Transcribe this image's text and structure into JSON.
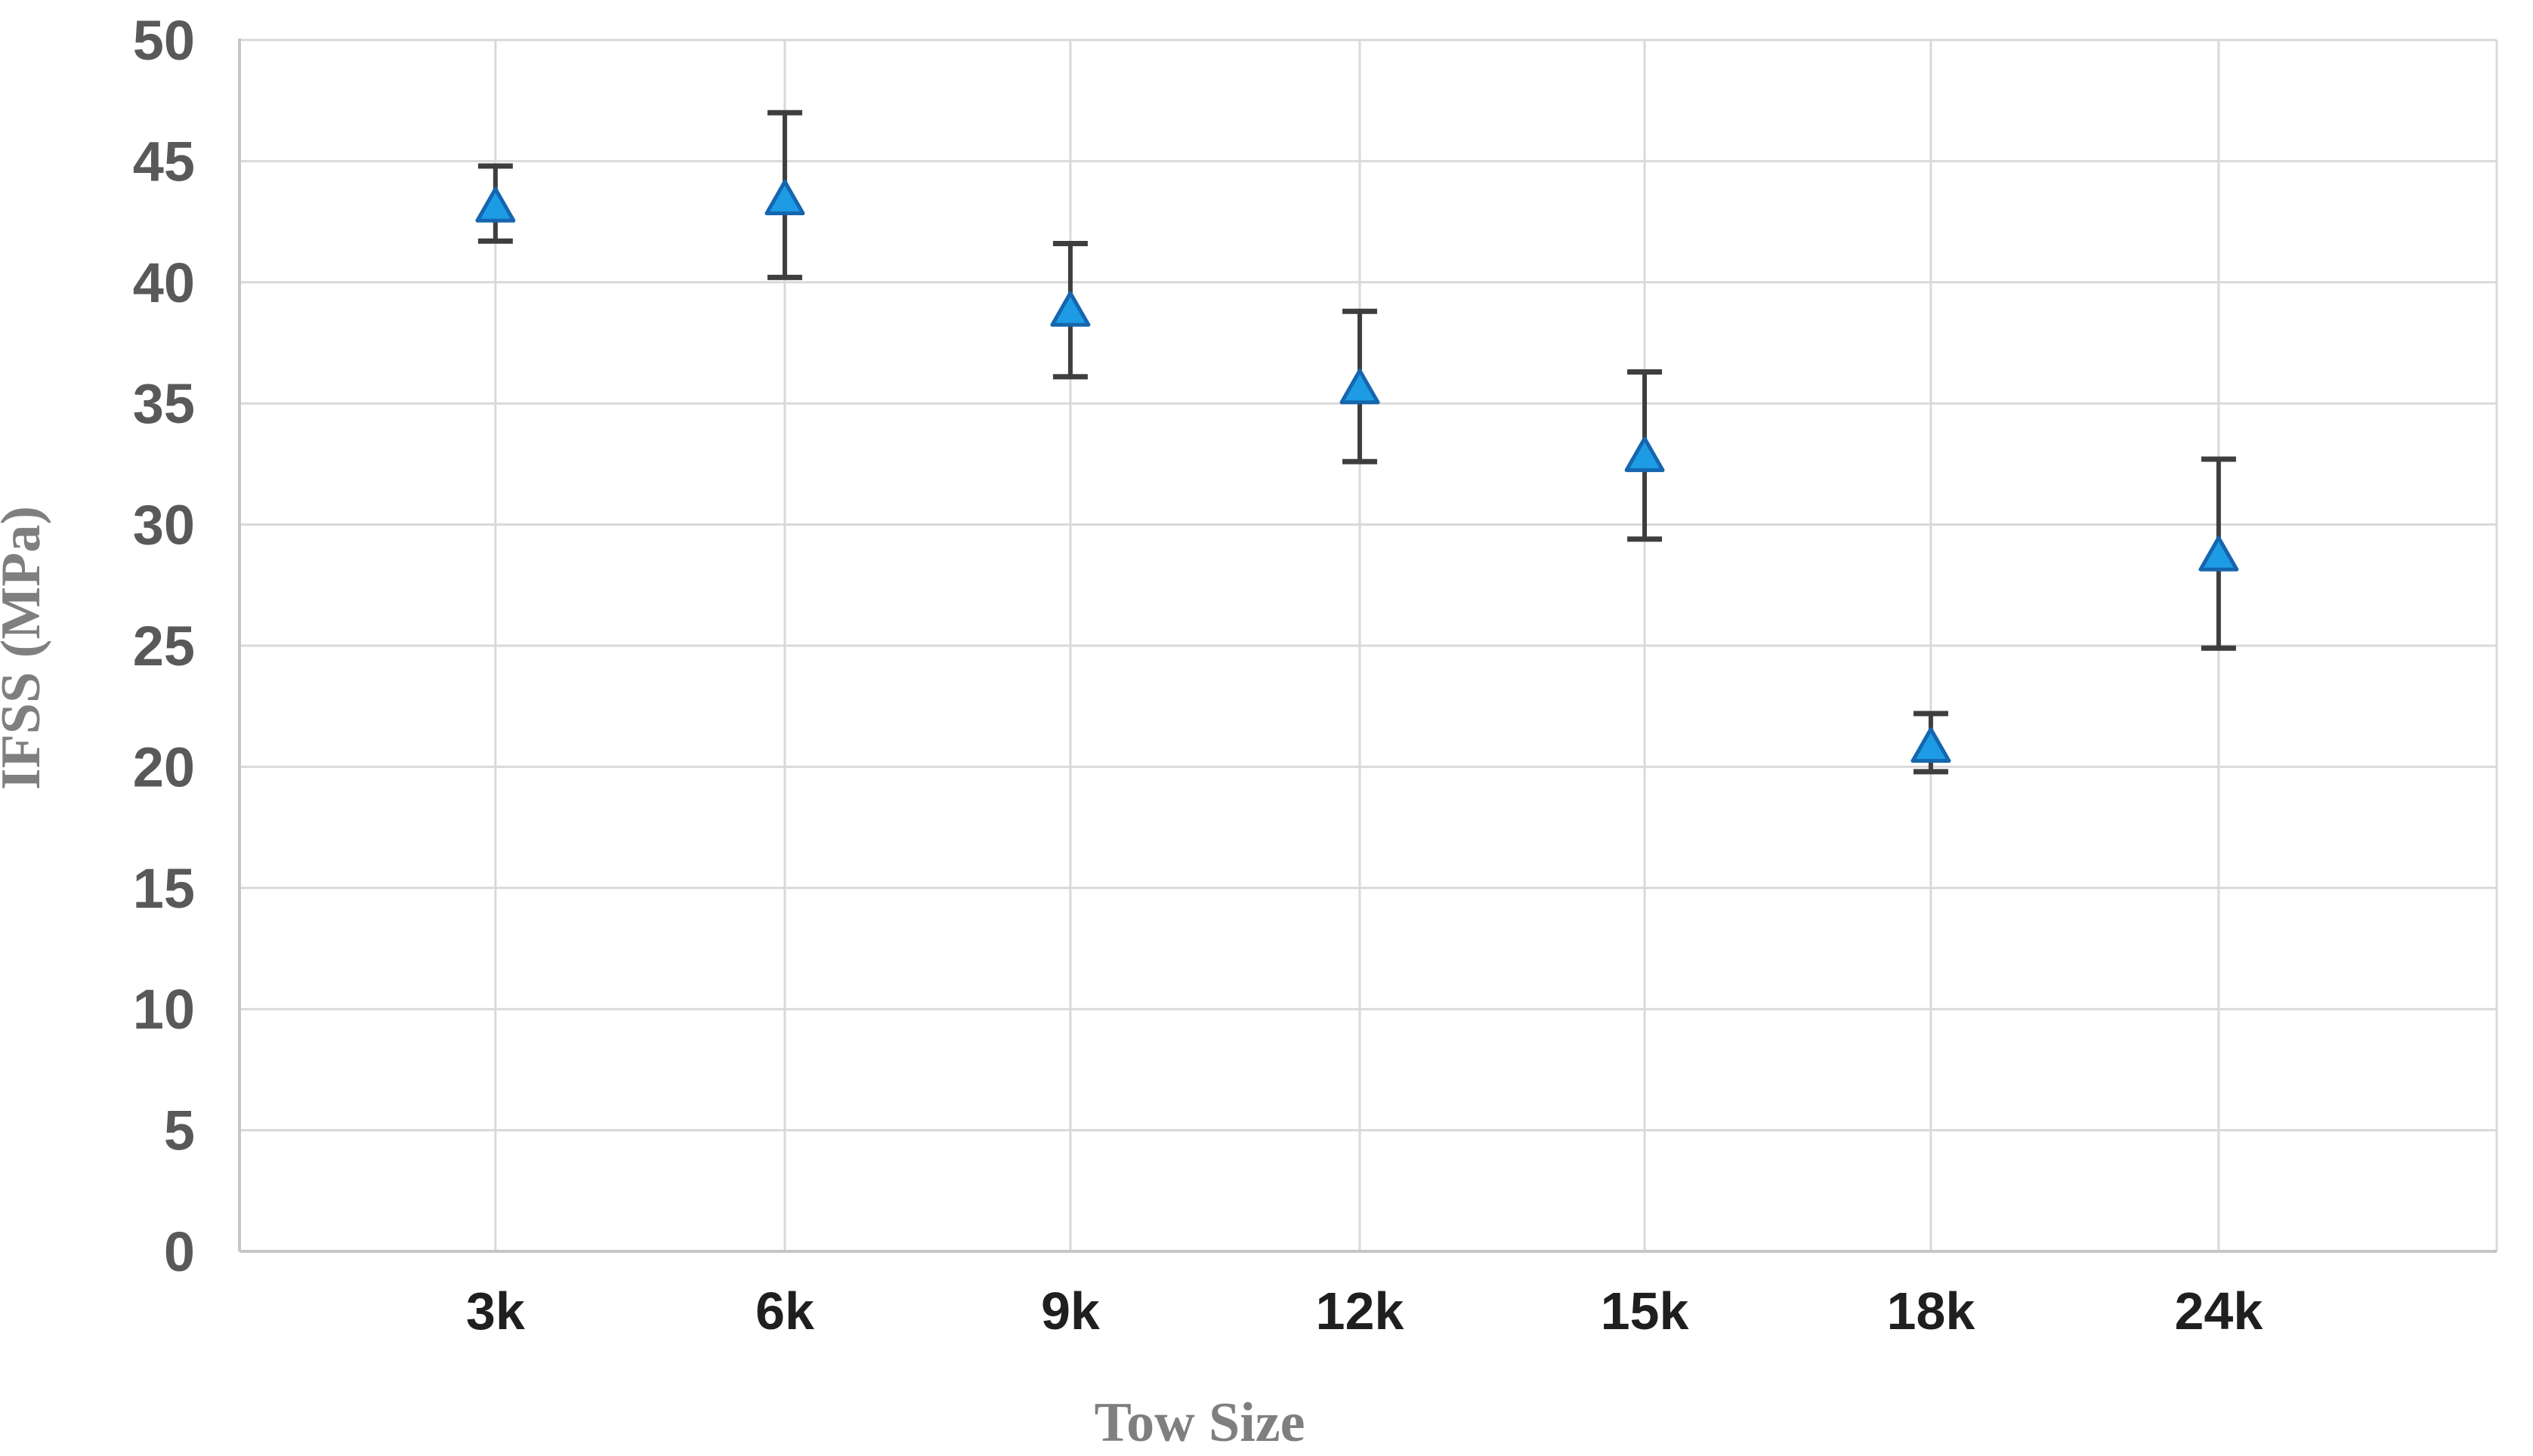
{
  "chart_data": {
    "type": "scatter",
    "title": "",
    "xlabel": "Tow Size",
    "ylabel": "IFSS (MPa)",
    "categories": [
      "3k",
      "6k",
      "9k",
      "12k",
      "15k",
      "18k",
      "24k"
    ],
    "series": [
      {
        "name": "IFSS",
        "values": [
          43.2,
          43.5,
          38.9,
          35.7,
          32.9,
          20.9,
          28.8
        ],
        "error_high": [
          44.8,
          47.0,
          41.6,
          38.8,
          36.3,
          22.2,
          32.7
        ],
        "error_low": [
          41.7,
          40.2,
          36.1,
          32.6,
          29.4,
          19.8,
          24.9
        ]
      }
    ],
    "ylim": [
      0,
      50
    ],
    "ytick_step": 5,
    "yticks": [
      0,
      5,
      10,
      15,
      20,
      25,
      30,
      35,
      40,
      45,
      50
    ],
    "grid": true,
    "grid_vertical": true,
    "legend": "none",
    "marker": "triangle-up",
    "colors": {
      "marker_fill": "#1D9CE5",
      "marker_stroke": "#1566AE",
      "error_bar": "#3E3E3E",
      "gridline": "#D9D9D9",
      "axis_line": "#C6C6C6",
      "y_tick_text": "#595959",
      "x_tick_text": "#1F1F1F",
      "axis_title_text": "#7F7F7F"
    }
  }
}
